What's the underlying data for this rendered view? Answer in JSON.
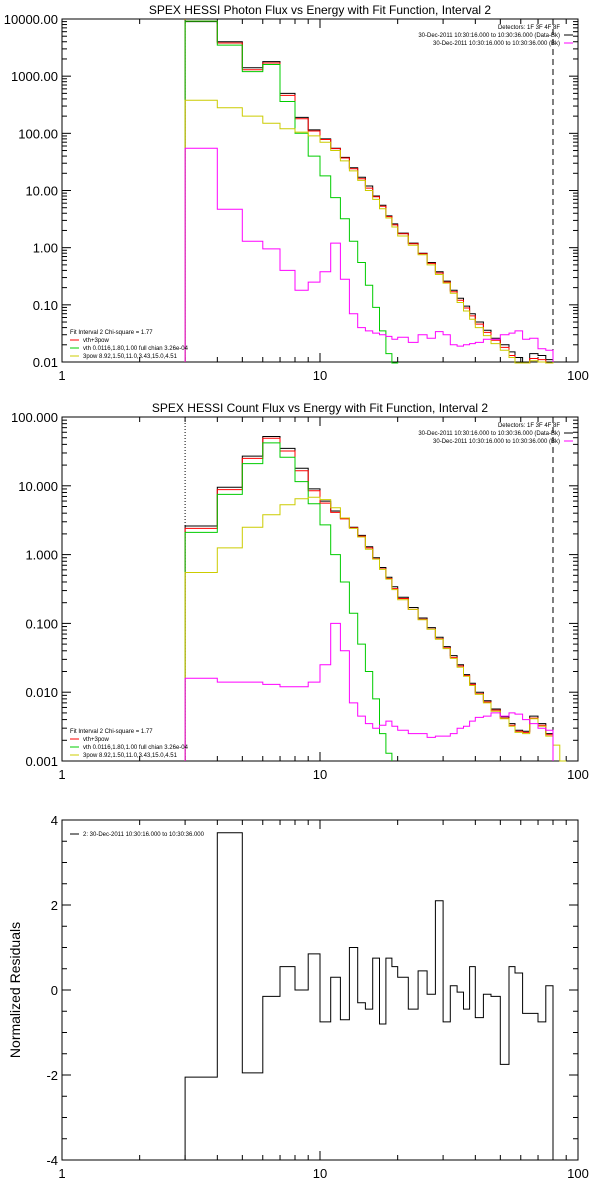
{
  "chart_data": [
    {
      "type": "line",
      "title": "SPEX HESSI Photon Flux vs Energy with Fit Function, Interval 2",
      "xlabel": "",
      "ylabel": "",
      "xscale": "log",
      "yscale": "log",
      "xlim": [
        1,
        100
      ],
      "ylim": [
        0.01,
        10000
      ],
      "xticks": [
        {
          "v": 1,
          "label": "1"
        },
        {
          "v": 10,
          "label": "10"
        },
        {
          "v": 100,
          "label": "100"
        }
      ],
      "yticks": [
        {
          "v": 0.01,
          "label": "0.01"
        },
        {
          "v": 0.1,
          "label": "0.10"
        },
        {
          "v": 1,
          "label": "1.00"
        },
        {
          "v": 10,
          "label": "10.00"
        },
        {
          "v": 100,
          "label": "100.00"
        },
        {
          "v": 1000,
          "label": "1000.00"
        },
        {
          "v": 10000,
          "label": "10000.00"
        }
      ],
      "legend_topright": [
        {
          "text": "Detectors: 1F 3F 4F 8F",
          "color": "#000000",
          "line": false
        },
        {
          "text": "30-Dec-2011 10:30:16.000 to 10:30:36.000 (Data-Bk)",
          "color": "#000000",
          "line": true
        },
        {
          "text": "30-Dec-2011 10:30:16.000 to 10:30:36.000 (Bk)",
          "color": "#ff00ff",
          "line": true
        }
      ],
      "legend_bottomleft": [
        {
          "text": "Fit Interval 2   Chi-square = 1.77",
          "color": "#000000",
          "line": false
        },
        {
          "text": "vth+3pow",
          "color": "#ff0000",
          "line": true
        },
        {
          "text": "vth 0.0116,1.80,1.00  full chian 3.26e-04",
          "color": "#00cc00",
          "line": true
        },
        {
          "text": "3pow 8.92,1.50,11.0,3.43,15.0,4.51",
          "color": "#cccc00",
          "line": true
        }
      ],
      "vlines": [
        {
          "x": 3,
          "color": "#cc8800",
          "dash": "1,2"
        },
        {
          "x": 80,
          "color": "#000000",
          "dash": "6,4"
        }
      ],
      "bin_edges": [
        3,
        4,
        5,
        6,
        7,
        8,
        9,
        10,
        11,
        12,
        13,
        14,
        15,
        16,
        17,
        18,
        19,
        20,
        22,
        24,
        26,
        28,
        30,
        32,
        34,
        36,
        38,
        40,
        43,
        46,
        50,
        54,
        57,
        61,
        65,
        70,
        75,
        80
      ],
      "series": [
        {
          "name": "30-Dec-2011 10:30:16.000 to 10:30:36.000 (Data-Bk)",
          "color": "#000000",
          "values": [
            9000,
            4000,
            1400,
            1800,
            500,
            190,
            115,
            80,
            55,
            38,
            25,
            17,
            12,
            8,
            5.5,
            3.6,
            2.6,
            1.8,
            1.2,
            0.8,
            0.55,
            0.38,
            0.26,
            0.18,
            0.13,
            0.095,
            0.07,
            0.05,
            0.036,
            0.026,
            0.02,
            0.015,
            0.012,
            0.009,
            0.014,
            0.013,
            0.011
          ]
        },
        {
          "name": "vth+3pow",
          "color": "#ff0000",
          "values": [
            9200,
            3800,
            1300,
            1700,
            460,
            180,
            110,
            78,
            54,
            37,
            24,
            16,
            11,
            7.8,
            5.3,
            3.5,
            2.5,
            1.75,
            1.17,
            0.78,
            0.53,
            0.36,
            0.25,
            0.17,
            0.12,
            0.088,
            0.064,
            0.046,
            0.033,
            0.024,
            0.018,
            0.013,
            0.0095,
            0.0075,
            0.0115,
            0.011,
            0.0095
          ]
        },
        {
          "name": "vth 0.0116,1.80,1.00  full chian 3.26e-04",
          "color": "#00cc00",
          "values": [
            9200,
            3500,
            1200,
            1600,
            360,
            100,
            40,
            18,
            7.5,
            3.2,
            1.3,
            0.55,
            0.22,
            0.09,
            0.035,
            0.014,
            0.008
          ]
        },
        {
          "name": "3pow 8.92,1.50,11.0,3.43,15.0,4.51",
          "color": "#cccc00",
          "values": [
            380,
            280,
            200,
            150,
            120,
            105,
            90,
            70,
            50,
            33,
            22,
            15,
            10,
            7,
            4.8,
            3.3,
            2.3,
            1.6,
            1.1,
            0.75,
            0.5,
            0.34,
            0.24,
            0.16,
            0.11,
            0.078,
            0.056,
            0.04,
            0.029,
            0.021,
            0.016,
            0.012,
            0.009,
            0.0068,
            0.0105,
            0.01,
            0.0088
          ]
        },
        {
          "name": "30-Dec-2011 10:30:16.000 to 10:30:36.000 (Bk)",
          "color": "#ff00ff",
          "values": [
            55,
            4.7,
            1.3,
            0.95,
            0.4,
            0.18,
            0.25,
            0.38,
            1.2,
            0.28,
            0.07,
            0.04,
            0.035,
            0.032,
            0.03,
            0.028,
            0.025,
            0.027,
            0.022,
            0.03,
            0.026,
            0.034,
            0.03,
            0.02,
            0.019,
            0.02,
            0.021,
            0.022,
            0.025,
            0.025,
            0.03,
            0.032,
            0.035,
            0.025,
            0.026,
            0.017,
            0.016
          ]
        }
      ]
    },
    {
      "type": "line",
      "title": "SPEX HESSI Count Flux vs Energy with Fit Function, Interval 2",
      "xlabel": "",
      "ylabel": "",
      "xscale": "log",
      "yscale": "log",
      "xlim": [
        1,
        100
      ],
      "ylim": [
        0.001,
        100
      ],
      "xticks": [
        {
          "v": 1,
          "label": "1"
        },
        {
          "v": 10,
          "label": "10"
        },
        {
          "v": 100,
          "label": "100"
        }
      ],
      "yticks": [
        {
          "v": 0.001,
          "label": "0.001"
        },
        {
          "v": 0.01,
          "label": "0.010"
        },
        {
          "v": 0.1,
          "label": "0.100"
        },
        {
          "v": 1,
          "label": "1.000"
        },
        {
          "v": 10,
          "label": "10.000"
        },
        {
          "v": 100,
          "label": "100.000"
        }
      ],
      "legend_topright": [
        {
          "text": "Detectors: 1F 3F 4F 8F",
          "color": "#000000",
          "line": false
        },
        {
          "text": "30-Dec-2011 10:30:16.000 to 10:30:36.000 (Data-Bk)",
          "color": "#000000",
          "line": true
        },
        {
          "text": "30-Dec-2011 10:30:16.000 to 10:30:36.000 (Bk)",
          "color": "#ff00ff",
          "line": true
        }
      ],
      "legend_bottomleft": [
        {
          "text": "Fit Interval 2   Chi-square = 1.77",
          "color": "#000000",
          "line": false
        },
        {
          "text": "vth+3pow",
          "color": "#ff0000",
          "line": true
        },
        {
          "text": "vth 0.0116,1.80,1.00  full chian 3.26e-04",
          "color": "#00cc00",
          "line": true
        },
        {
          "text": "3pow 8.92,1.50,11.0,3.43,15.0,4.51",
          "color": "#cccc00",
          "line": true
        }
      ],
      "vlines": [
        {
          "x": 3,
          "color": "#000000",
          "dash": "1,2"
        },
        {
          "x": 80,
          "color": "#000000",
          "dash": "6,4"
        }
      ],
      "bin_edges": [
        3,
        4,
        5,
        6,
        7,
        8,
        9,
        10,
        11,
        12,
        13,
        14,
        15,
        16,
        17,
        18,
        19,
        20,
        22,
        24,
        26,
        28,
        30,
        32,
        34,
        36,
        38,
        40,
        43,
        46,
        50,
        54,
        57,
        61,
        65,
        70,
        75,
        80,
        85,
        90
      ],
      "series": [
        {
          "name": "30-Dec-2011 10:30:16.000 to 10:30:36.000 (Data-Bk)",
          "color": "#000000",
          "values": [
            2.6,
            9.5,
            27,
            52,
            35,
            18,
            9,
            6,
            4.3,
            3.4,
            2.5,
            1.9,
            1.3,
            0.9,
            0.65,
            0.47,
            0.34,
            0.24,
            0.17,
            0.12,
            0.087,
            0.063,
            0.046,
            0.034,
            0.025,
            0.018,
            0.0135,
            0.01,
            0.0075,
            0.0057,
            0.0044,
            0.0035,
            0.0028,
            0.0027,
            0.0045,
            0.0035,
            0.0025
          ]
        },
        {
          "name": "vth+3pow",
          "color": "#ff0000",
          "values": [
            2.4,
            8.8,
            25,
            49,
            32,
            16.5,
            8.5,
            5.6,
            4.1,
            3.3,
            2.45,
            1.85,
            1.25,
            0.87,
            0.62,
            0.45,
            0.32,
            0.23,
            0.16,
            0.115,
            0.083,
            0.06,
            0.044,
            0.032,
            0.024,
            0.0175,
            0.013,
            0.0095,
            0.0072,
            0.0055,
            0.0042,
            0.0033,
            0.0027,
            0.0026,
            0.0042,
            0.0033,
            0.0024
          ]
        },
        {
          "name": "vth 0.0116,1.80,1.00  full chian 3.26e-04",
          "color": "#00cc00",
          "values": [
            2.1,
            7.5,
            21,
            42,
            26,
            11.5,
            5.5,
            2.7,
            1.0,
            0.4,
            0.14,
            0.05,
            0.02,
            0.008,
            0.0025,
            0.0013
          ]
        },
        {
          "name": "3pow 8.92,1.50,11.0,3.43,15.0,4.51",
          "color": "#cccc00",
          "values": [
            0.55,
            1.25,
            2.5,
            3.8,
            5.3,
            6.5,
            6.8,
            6.3,
            4.8,
            3.4,
            2.4,
            1.8,
            1.2,
            0.86,
            0.61,
            0.44,
            0.31,
            0.22,
            0.16,
            0.113,
            0.082,
            0.059,
            0.043,
            0.031,
            0.023,
            0.017,
            0.0125,
            0.0093,
            0.007,
            0.0053,
            0.0041,
            0.0032,
            0.0026,
            0.0025,
            0.0041,
            0.0032,
            0.0023,
            0.0017,
            0.001
          ]
        },
        {
          "name": "30-Dec-2011 10:30:16.000 to 10:30:36.000 (Bk)",
          "color": "#ff00ff",
          "values": [
            0.016,
            0.014,
            0.014,
            0.013,
            0.012,
            0.012,
            0.014,
            0.025,
            0.1,
            0.04,
            0.007,
            0.0045,
            0.0035,
            0.003,
            0.0033,
            0.0038,
            0.0032,
            0.0028,
            0.0025,
            0.0025,
            0.0022,
            0.0023,
            0.0023,
            0.0025,
            0.003,
            0.0032,
            0.0038,
            0.0043,
            0.0045,
            0.005,
            0.0045,
            0.005,
            0.0048,
            0.004,
            0.0035,
            0.003,
            0.0028
          ]
        }
      ]
    },
    {
      "type": "line",
      "title": "",
      "xlabel": "",
      "ylabel": "Normalized Residuals",
      "xscale": "log",
      "yscale": "linear",
      "xlim": [
        1,
        100
      ],
      "ylim": [
        -4,
        4
      ],
      "xticks": [
        {
          "v": 1,
          "label": "1"
        },
        {
          "v": 10,
          "label": "10"
        },
        {
          "v": 100,
          "label": "100"
        }
      ],
      "yticks": [
        {
          "v": -4,
          "label": "-4"
        },
        {
          "v": -2,
          "label": "-2"
        },
        {
          "v": 0,
          "label": "0"
        },
        {
          "v": 2,
          "label": "2"
        },
        {
          "v": 4,
          "label": "4"
        }
      ],
      "legend_topleft": [
        {
          "text": "2: 30-Dec-2011 10:30:16.000 to 10:30:36.000",
          "color": "#000000",
          "line": true
        }
      ],
      "bin_edges": [
        3,
        4,
        5,
        6,
        7,
        8,
        9,
        10,
        11,
        12,
        13,
        14,
        15,
        16,
        17,
        18,
        19,
        20,
        22,
        24,
        26,
        28,
        30,
        32,
        34,
        36,
        38,
        40,
        43,
        46,
        50,
        54,
        57,
        61,
        65,
        70,
        75,
        80
      ],
      "series": [
        {
          "name": "2: 30-Dec-2011 10:30:16.000 to 10:30:36.000",
          "color": "#000000",
          "values": [
            -2.05,
            3.7,
            -1.95,
            -0.15,
            0.55,
            0.0,
            0.85,
            -0.75,
            0.3,
            -0.7,
            1.0,
            -0.3,
            -0.45,
            0.75,
            -0.8,
            0.75,
            0.55,
            0.3,
            -0.45,
            0.45,
            -0.1,
            2.1,
            -0.75,
            0.1,
            -0.05,
            -0.45,
            0.55,
            -0.65,
            -0.1,
            -0.15,
            -1.75,
            0.55,
            0.4,
            -0.55,
            -0.55,
            -0.75,
            0.1
          ]
        }
      ]
    }
  ]
}
